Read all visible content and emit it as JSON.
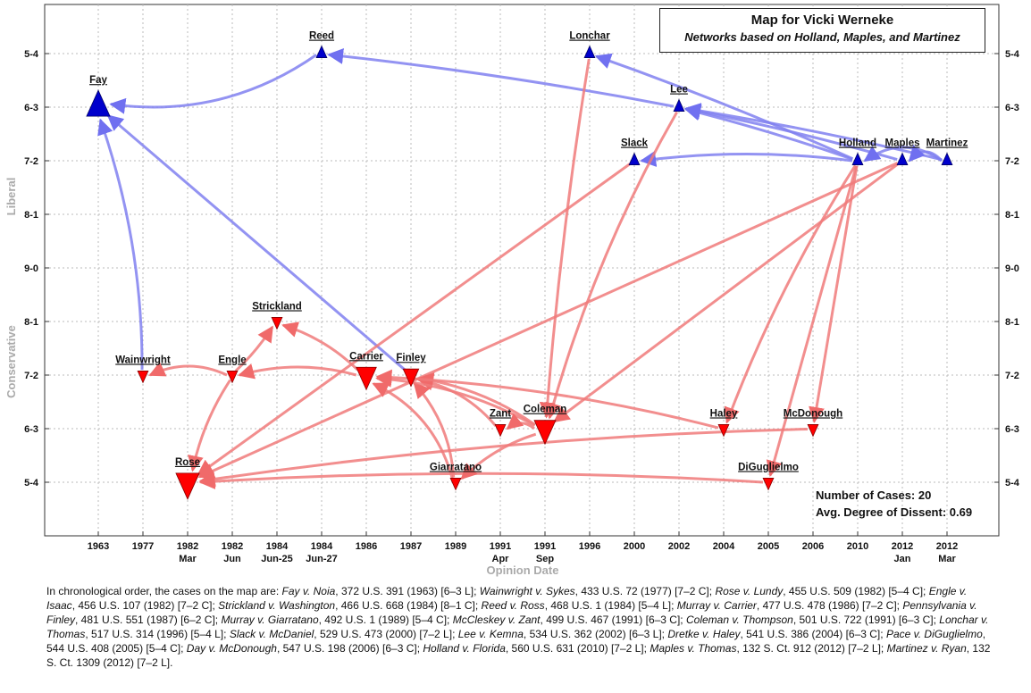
{
  "chart_data": {
    "type": "scatter",
    "title": "Map for Vicki Werneke",
    "subtitle": "Networks based on Holland, Maples, and Martinez",
    "xlabel": "Opinion Date",
    "ylabel_top": "Liberal",
    "ylabel_bottom": "Conservative",
    "x_categories": [
      {
        "top": "1963",
        "bottom": ""
      },
      {
        "top": "1977",
        "bottom": ""
      },
      {
        "top": "1982",
        "bottom": "Mar"
      },
      {
        "top": "1982",
        "bottom": "Jun"
      },
      {
        "top": "1984",
        "bottom": "Jun-25"
      },
      {
        "top": "1984",
        "bottom": "Jun-27"
      },
      {
        "top": "1986",
        "bottom": ""
      },
      {
        "top": "1987",
        "bottom": ""
      },
      {
        "top": "1989",
        "bottom": ""
      },
      {
        "top": "1991",
        "bottom": "Apr"
      },
      {
        "top": "1991",
        "bottom": "Sep"
      },
      {
        "top": "1996",
        "bottom": ""
      },
      {
        "top": "2000",
        "bottom": ""
      },
      {
        "top": "2002",
        "bottom": ""
      },
      {
        "top": "2004",
        "bottom": ""
      },
      {
        "top": "2005",
        "bottom": ""
      },
      {
        "top": "2006",
        "bottom": ""
      },
      {
        "top": "2010",
        "bottom": ""
      },
      {
        "top": "2012",
        "bottom": "Jan"
      },
      {
        "top": "2012",
        "bottom": "Mar"
      }
    ],
    "y_categories": [
      "5-4",
      "6-3",
      "7-2",
      "8-1",
      "9-0",
      "8-1",
      "7-2",
      "6-3",
      "5-4"
    ],
    "grid": true,
    "nodes": [
      {
        "name": "Fay",
        "x": 0,
        "y": 1,
        "kind": "liberal",
        "size": 3
      },
      {
        "name": "Wainwright",
        "x": 1,
        "y": 6,
        "kind": "conservative",
        "size": 1
      },
      {
        "name": "Rose",
        "x": 2,
        "y": 8,
        "kind": "conservative",
        "size": 3
      },
      {
        "name": "Engle",
        "x": 3,
        "y": 6,
        "kind": "conservative",
        "size": 1
      },
      {
        "name": "Strickland",
        "x": 4,
        "y": 5,
        "kind": "conservative",
        "size": 1
      },
      {
        "name": "Reed",
        "x": 5,
        "y": 0,
        "kind": "liberal",
        "size": 1
      },
      {
        "name": "Carrier",
        "x": 6,
        "y": 6,
        "kind": "conservative",
        "size": 2.5
      },
      {
        "name": "Finley",
        "x": 7,
        "y": 6,
        "kind": "conservative",
        "size": 1.8
      },
      {
        "name": "Giarratano",
        "x": 8,
        "y": 8,
        "kind": "conservative",
        "size": 1
      },
      {
        "name": "Zant",
        "x": 9,
        "y": 7,
        "kind": "conservative",
        "size": 1
      },
      {
        "name": "Coleman",
        "x": 10,
        "y": 7,
        "kind": "conservative",
        "size": 2.7
      },
      {
        "name": "Lonchar",
        "x": 11,
        "y": 0,
        "kind": "liberal",
        "size": 1
      },
      {
        "name": "Slack",
        "x": 12,
        "y": 2,
        "kind": "liberal",
        "size": 1
      },
      {
        "name": "Lee",
        "x": 13,
        "y": 1,
        "kind": "liberal",
        "size": 1
      },
      {
        "name": "Haley",
        "x": 14,
        "y": 7,
        "kind": "conservative",
        "size": 1
      },
      {
        "name": "DiGuglielmo",
        "x": 15,
        "y": 8,
        "kind": "conservative",
        "size": 1
      },
      {
        "name": "McDonough",
        "x": 16,
        "y": 7,
        "kind": "conservative",
        "size": 1
      },
      {
        "name": "Holland",
        "x": 17,
        "y": 2,
        "kind": "liberal",
        "size": 1
      },
      {
        "name": "Maples",
        "x": 18,
        "y": 2,
        "kind": "liberal",
        "size": 1
      },
      {
        "name": "Martinez",
        "x": 19,
        "y": 2,
        "kind": "liberal",
        "size": 1
      }
    ],
    "edges": [
      {
        "from": 5,
        "to": 0,
        "kind": "liberal",
        "bend": -0.18
      },
      {
        "from": 13,
        "to": 5,
        "kind": "liberal",
        "bend": 0.02
      },
      {
        "from": 1,
        "to": 0,
        "kind": "liberal",
        "bend": 0.08
      },
      {
        "from": 7,
        "to": 0,
        "kind": "liberal",
        "bend": 0.0
      },
      {
        "from": 17,
        "to": 11,
        "kind": "liberal",
        "bend": 0.02
      },
      {
        "from": 17,
        "to": 13,
        "kind": "liberal",
        "bend": 0.02
      },
      {
        "from": 17,
        "to": 12,
        "kind": "liberal",
        "bend": 0.06
      },
      {
        "from": 18,
        "to": 13,
        "kind": "liberal",
        "bend": 0.02
      },
      {
        "from": 19,
        "to": 13,
        "kind": "liberal",
        "bend": 0.02
      },
      {
        "from": 19,
        "to": 17,
        "kind": "liberal",
        "bend": 0.3
      },
      {
        "from": 19,
        "to": 18,
        "kind": "liberal",
        "bend": 0.4
      },
      {
        "from": 3,
        "to": 1,
        "kind": "conservative",
        "bend": 0.2
      },
      {
        "from": 3,
        "to": 4,
        "kind": "conservative",
        "bend": 0.05
      },
      {
        "from": 6,
        "to": 3,
        "kind": "conservative",
        "bend": 0.12
      },
      {
        "from": 6,
        "to": 4,
        "kind": "conservative",
        "bend": 0.1
      },
      {
        "from": 3,
        "to": 2,
        "kind": "conservative",
        "bend": 0.08
      },
      {
        "from": 12,
        "to": 2,
        "kind": "conservative",
        "bend": 0.0
      },
      {
        "from": 18,
        "to": 2,
        "kind": "conservative",
        "bend": 0.0
      },
      {
        "from": 16,
        "to": 2,
        "kind": "conservative",
        "bend": 0.03
      },
      {
        "from": 15,
        "to": 2,
        "kind": "conservative",
        "bend": 0.03
      },
      {
        "from": 8,
        "to": 6,
        "kind": "conservative",
        "bend": 0.2
      },
      {
        "from": 8,
        "to": 7,
        "kind": "conservative",
        "bend": 0.15
      },
      {
        "from": 9,
        "to": 7,
        "kind": "conservative",
        "bend": 0.15
      },
      {
        "from": 10,
        "to": 7,
        "kind": "conservative",
        "bend": 0.1
      },
      {
        "from": 10,
        "to": 6,
        "kind": "conservative",
        "bend": 0.1
      },
      {
        "from": 14,
        "to": 6,
        "kind": "conservative",
        "bend": 0.05
      },
      {
        "from": 10,
        "to": 8,
        "kind": "conservative",
        "bend": 0.1
      },
      {
        "from": 10,
        "to": 9,
        "kind": "conservative",
        "bend": 0.25
      },
      {
        "from": 11,
        "to": 10,
        "kind": "conservative",
        "bend": 0.02
      },
      {
        "from": 13,
        "to": 10,
        "kind": "conservative",
        "bend": 0.06
      },
      {
        "from": 17,
        "to": 14,
        "kind": "conservative",
        "bend": 0.05
      },
      {
        "from": 17,
        "to": 16,
        "kind": "conservative",
        "bend": 0.0
      },
      {
        "from": 17,
        "to": 15,
        "kind": "conservative",
        "bend": 0.0
      },
      {
        "from": 18,
        "to": 10,
        "kind": "conservative",
        "bend": 0.0
      }
    ],
    "colors": {
      "liberal_node": "#0000cc",
      "conservative_node": "#ff0000",
      "liberal_edge": "#8080f0",
      "conservative_edge": "#f07a7a",
      "grid": "#bbbbbb"
    }
  },
  "stats": {
    "cases_label": "Number of Cases: 20",
    "dissent_label": "Avg. Degree of Dissent: 0.69"
  },
  "caption": {
    "intro": "In chronological order, the cases on the map are:",
    "cases": [
      {
        "name": "Fay v. Noia",
        "cite": ", 372 U.S. 391 (1963) [6–3 L];"
      },
      {
        "name": "Wainwright v. Sykes",
        "cite": ", 433 U.S. 72 (1977) [7–2 C];"
      },
      {
        "name": "Rose v. Lundy",
        "cite": ", 455 U.S. 509 (1982) [5–4 C];"
      },
      {
        "name": "Engle v. Isaac",
        "cite": ", 456 U.S. 107 (1982) [7–2 C];"
      },
      {
        "name": "Strickland v. Washington",
        "cite": ", 466 U.S. 668 (1984) [8–1 C];"
      },
      {
        "name": "Reed v. Ross",
        "cite": ", 468 U.S. 1 (1984) [5–4 L];"
      },
      {
        "name": "Murray v. Carrier",
        "cite": ", 477 U.S. 478 (1986) [7–2 C];"
      },
      {
        "name": "Pennsylvania v. Finley",
        "cite": ", 481 U.S. 551 (1987) [6–2 C];"
      },
      {
        "name": "Murray v. Giarratano",
        "cite": ", 492 U.S. 1 (1989) [5–4 C];"
      },
      {
        "name": "McCleskey v. Zant",
        "cite": ", 499 U.S. 467 (1991) [6–3 C];"
      },
      {
        "name": "Coleman v. Thompson",
        "cite": ", 501 U.S. 722 (1991) [6–3 C];"
      },
      {
        "name": "Lonchar v. Thomas",
        "cite": ", 517 U.S. 314 (1996) [5–4 L];"
      },
      {
        "name": "Slack v. McDaniel",
        "cite": ", 529 U.S. 473 (2000) [7–2 L];"
      },
      {
        "name": "Lee v. Kemna",
        "cite": ", 534 U.S. 362 (2002) [6–3 L];"
      },
      {
        "name": "Dretke v. Haley",
        "cite": ", 541 U.S. 386 (2004) [6–3 C];"
      },
      {
        "name": "Pace v. DiGuglielmo",
        "cite": ", 544 U.S. 408 (2005) [5–4 C];"
      },
      {
        "name": "Day v. McDonough",
        "cite": ", 547 U.S. 198 (2006) [6–3 C];"
      },
      {
        "name": "Holland v. Florida",
        "cite": ", 560 U.S. 631 (2010) [7–2 L];"
      },
      {
        "name": "Maples v. Thomas",
        "cite": ", 132 S. Ct. 912 (2012) [7–2 L];"
      },
      {
        "name": "Martinez v. Ryan",
        "cite": ", 132 S. Ct. 1309 (2012) [7–2 L]."
      }
    ]
  }
}
